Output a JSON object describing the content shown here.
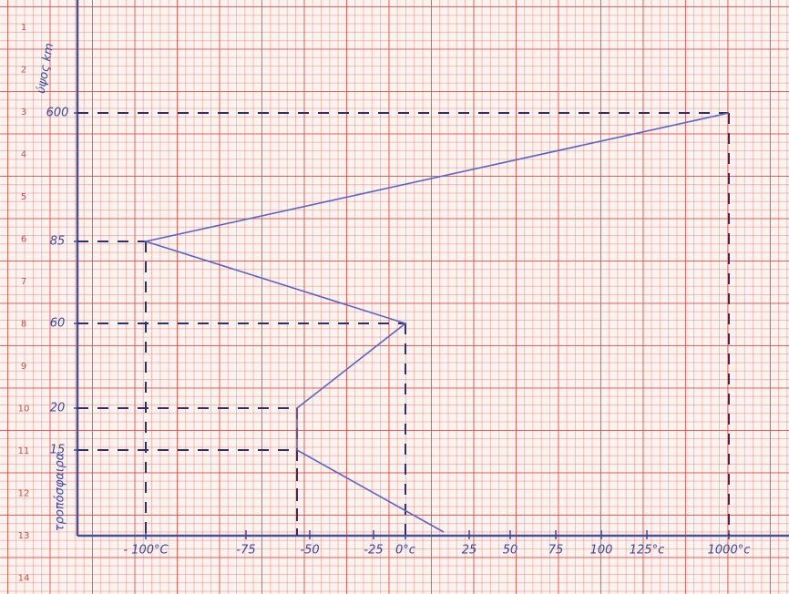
{
  "chart_data": {
    "type": "line",
    "y_label": "ύψος km",
    "annotation": "τροπόσφαιρα",
    "paper_rows": [
      "1",
      "2",
      "3",
      "4",
      "5",
      "6",
      "7",
      "8",
      "9",
      "10",
      "11",
      "12",
      "13",
      "14"
    ],
    "x": [
      1000,
      -100,
      0,
      -55,
      -55,
      15
    ],
    "series": [
      {
        "color": "#5a64c8",
        "values": [
          600,
          85,
          60,
          20,
          15,
          0
        ]
      }
    ],
    "xticks": [
      {
        "value": -100,
        "label": "- 100°C"
      },
      {
        "value": -75,
        "label": "-75"
      },
      {
        "value": -50,
        "label": "-50"
      },
      {
        "value": -25,
        "label": "-25"
      },
      {
        "value": 0,
        "label": "0°c"
      },
      25,
      50,
      75,
      100,
      {
        "value": 125,
        "label": "125°c"
      },
      {
        "value": 1000,
        "label": "1000°c"
      }
    ],
    "yticks": [
      600,
      85,
      60,
      20,
      15
    ],
    "ylim": [
      0,
      600
    ]
  }
}
